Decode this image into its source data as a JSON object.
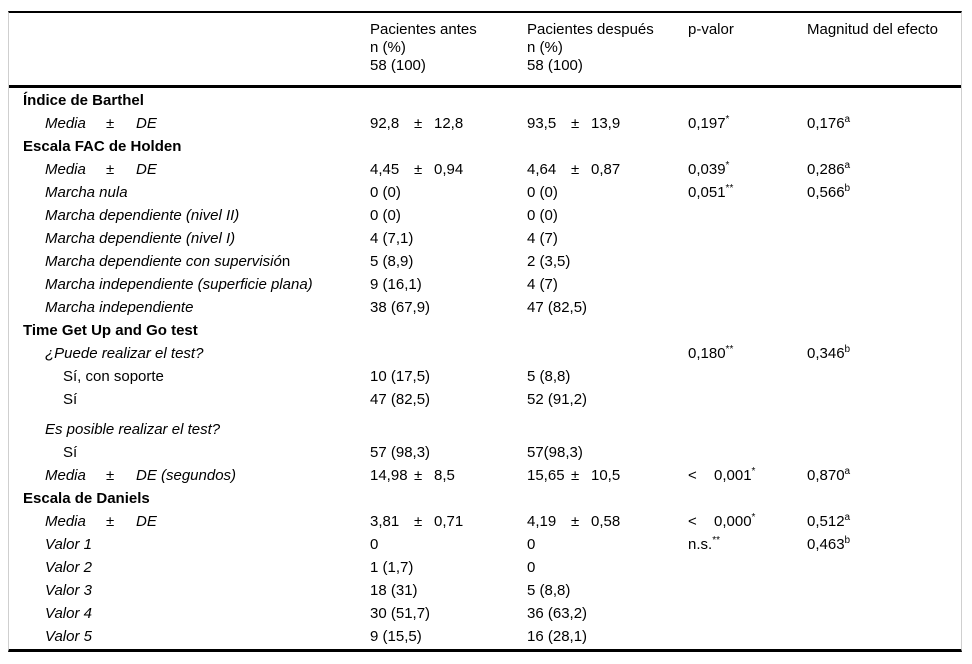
{
  "colors": {
    "rule": "#000000",
    "side_rule": "#cfcfcf",
    "text": "#000000",
    "background": "#ffffff"
  },
  "table": {
    "header": {
      "label": [],
      "antes": [
        "Pacientes antes",
        "n (%)",
        "58 (100)"
      ],
      "despues": [
        "Pacientes después",
        "n (%)",
        "58 (100)"
      ],
      "p": [
        "p-valor"
      ],
      "effect": [
        "Magnitud del efecto"
      ]
    },
    "rows": [
      {
        "style": "section",
        "label": "Índice de Barthel"
      },
      {
        "style": "mean",
        "mean_label": {
          "m": "Media",
          "pm": "±",
          "de": "DE"
        },
        "antes": {
          "mean": [
            "92,8",
            "±",
            "12,8"
          ]
        },
        "despues": {
          "mean": [
            "93,5",
            "±",
            "13,9"
          ]
        },
        "p": {
          "text": "0,197",
          "sup": "*"
        },
        "effect": {
          "text": "0,176",
          "sup": "a"
        }
      },
      {
        "style": "section",
        "label": "Escala FAC de Holden"
      },
      {
        "style": "mean",
        "mean_label": {
          "m": "Media",
          "pm": "±",
          "de": "DE"
        },
        "antes": {
          "mean": [
            "4,45",
            "±",
            "0,94"
          ]
        },
        "despues": {
          "mean": [
            "4,64",
            "±",
            "0,87"
          ]
        },
        "p": {
          "text": "0,039",
          "sup": "*"
        },
        "effect": {
          "text": "0,286",
          "sup": "a"
        }
      },
      {
        "style": "item",
        "label": "Marcha nula",
        "antes": {
          "text": "0 (0)"
        },
        "despues": {
          "text": "0 (0)"
        },
        "p": {
          "text": "0,051",
          "sup": "**"
        },
        "effect": {
          "text": "0,566",
          "sup": "b"
        }
      },
      {
        "style": "item",
        "label": "Marcha dependiente (nivel II)",
        "antes": {
          "text": "0 (0)"
        },
        "despues": {
          "text": "0 (0)"
        }
      },
      {
        "style": "item",
        "label": "Marcha dependiente (nivel I)",
        "antes": {
          "text": "4 (7,1)"
        },
        "despues": {
          "text": "4 (7)"
        }
      },
      {
        "style": "item",
        "label": "Marcha dependiente con supervisió",
        "label_suffix": "n",
        "antes": {
          "text": "5 (8,9)"
        },
        "despues": {
          "text": "2 (3,5)"
        }
      },
      {
        "style": "item",
        "label": "Marcha independiente (superficie plana)",
        "antes": {
          "text": "9 (16,1)"
        },
        "despues": {
          "text": "4 (7)"
        }
      },
      {
        "style": "item",
        "label": "Marcha independiente",
        "antes": {
          "text": "38 (67,9)"
        },
        "despues": {
          "text": "47 (82,5)"
        }
      },
      {
        "style": "section",
        "label": "Time Get Up and Go test"
      },
      {
        "style": "item",
        "label": "¿Puede realizar el test?",
        "p": {
          "text": "0,180",
          "sup": "**"
        },
        "effect": {
          "text": "0,346",
          "sup": "b"
        }
      },
      {
        "style": "sub",
        "label": "Sí, con soporte",
        "antes": {
          "text": "10 (17,5)"
        },
        "despues": {
          "text": "5 (8,8)"
        }
      },
      {
        "style": "sub",
        "label": "Sí",
        "antes": {
          "text": "47 (82,5)"
        },
        "despues": {
          "text": "52 (91,2)"
        }
      },
      {
        "style": "item",
        "label": "Es posible realizar el test?",
        "gap_before": true
      },
      {
        "style": "sub",
        "label": "Sí",
        "antes": {
          "text": "57 (98,3)"
        },
        "despues": {
          "text": "57(98,3)"
        }
      },
      {
        "style": "mean",
        "mean_label": {
          "m": "Media",
          "pm": "±",
          "de": "DE (segundos)"
        },
        "antes": {
          "mean": [
            "14,98",
            "±",
            "8,5"
          ]
        },
        "despues": {
          "mean": [
            "15,65",
            "±",
            "10,5"
          ]
        },
        "p": {
          "lt": "<",
          "text": "0,001",
          "sup": "*"
        },
        "effect": {
          "text": "0,870",
          "sup": "a"
        }
      },
      {
        "style": "section",
        "label": "Escala de Daniels"
      },
      {
        "style": "mean",
        "mean_label": {
          "m": "Media",
          "pm": "±",
          "de": "DE"
        },
        "antes": {
          "mean": [
            "3,81",
            "±",
            "0,71"
          ]
        },
        "despues": {
          "mean": [
            "4,19",
            "±",
            "0,58"
          ]
        },
        "p": {
          "lt": "<",
          "text": "0,000",
          "sup": "*"
        },
        "effect": {
          "text": "0,512",
          "sup": "a"
        }
      },
      {
        "style": "item",
        "label": "Valor 1",
        "antes": {
          "text": "0"
        },
        "despues": {
          "text": "0"
        },
        "p": {
          "text": "n.s.",
          "sup": "**"
        },
        "effect": {
          "text": "0,463",
          "sup": "b"
        }
      },
      {
        "style": "item",
        "label": "Valor 2",
        "antes": {
          "text": "1 (1,7)"
        },
        "despues": {
          "text": "0"
        }
      },
      {
        "style": "item",
        "label": "Valor 3",
        "antes": {
          "text": "18 (31)"
        },
        "despues": {
          "text": "5 (8,8)"
        }
      },
      {
        "style": "item",
        "label": "Valor 4",
        "antes": {
          "text": "30 (51,7)"
        },
        "despues": {
          "text": "36 (63,2)"
        }
      },
      {
        "style": "item",
        "label": "Valor 5",
        "antes": {
          "text": "9 (15,5)"
        },
        "despues": {
          "text": "16 (28,1)"
        }
      }
    ]
  }
}
